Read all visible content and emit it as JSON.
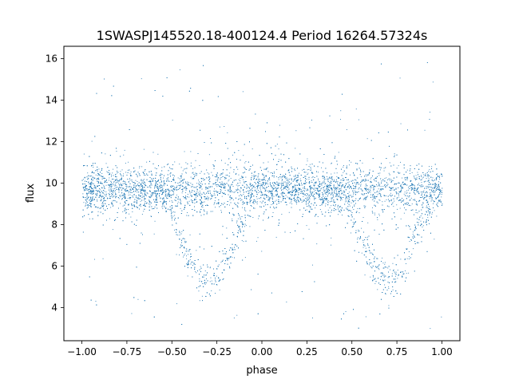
{
  "chart_data": {
    "type": "scatter",
    "title": "1SWASPJ145520.18-400124.4 Period 16264.57324s",
    "xlabel": "phase",
    "ylabel": "flux",
    "xlim": [
      -1.1,
      1.1
    ],
    "ylim": [
      2.4,
      16.6
    ],
    "xticks": [
      -1.0,
      -0.75,
      -0.5,
      -0.25,
      0.0,
      0.25,
      0.5,
      0.75,
      1.0
    ],
    "xtick_labels": [
      "−1.00",
      "−0.75",
      "−0.50",
      "−0.25",
      "0.00",
      "0.25",
      "0.50",
      "0.75",
      "1.00"
    ],
    "yticks": [
      4,
      6,
      8,
      10,
      12,
      14,
      16
    ],
    "ytick_labels": [
      "4",
      "6",
      "8",
      "10",
      "12",
      "14",
      "16"
    ],
    "grid": false,
    "legend": "none",
    "marker_color": "#1f77b4",
    "phase_range": [
      -1.0,
      1.0
    ],
    "baseline_flux": 9.7,
    "eclipse_centers": [
      -0.3,
      0.7
    ],
    "eclipse_min_flux": 5.3,
    "point_flux_range": [
      2.9,
      15.9
    ]
  }
}
